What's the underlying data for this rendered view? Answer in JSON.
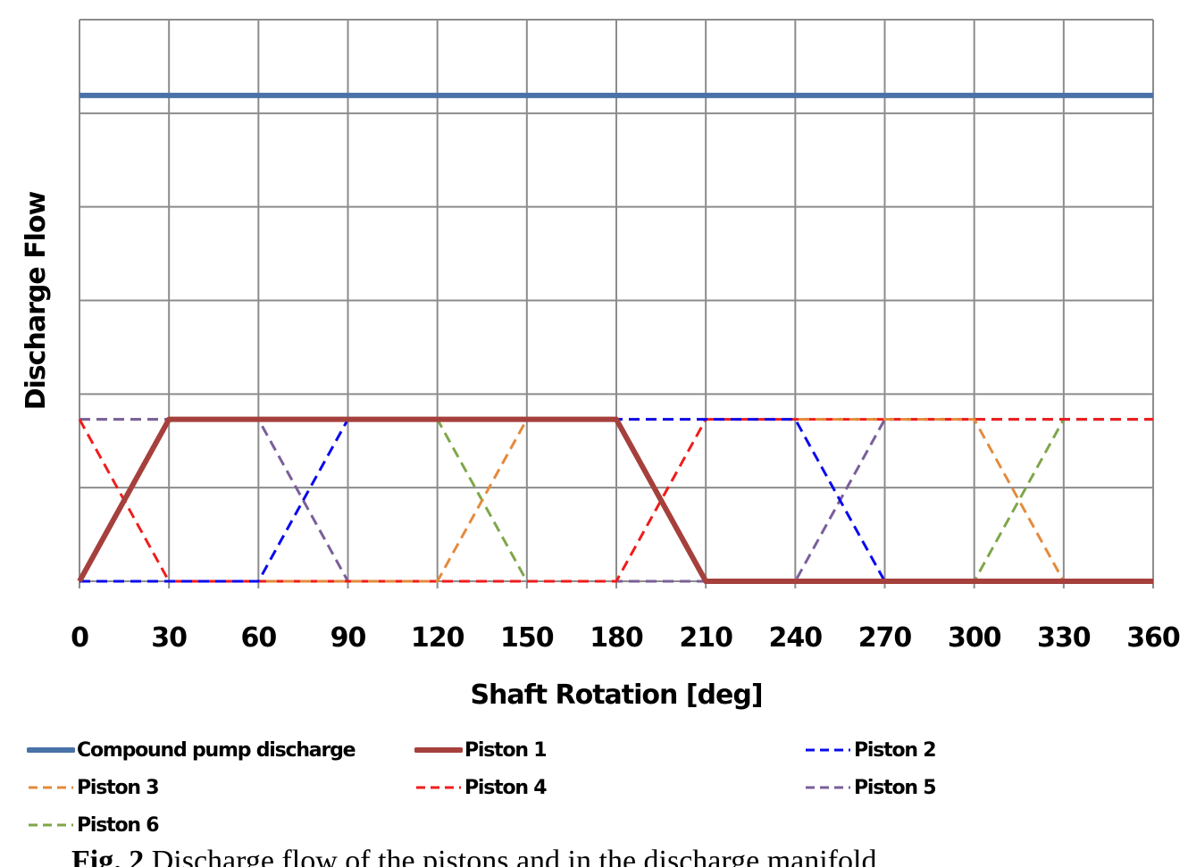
{
  "chart_data": {
    "type": "line",
    "title": "",
    "xlabel": "Shaft Rotation [deg]",
    "ylabel": "Discharge Flow",
    "xlim": [
      0,
      360
    ],
    "ylim": [
      0,
      6
    ],
    "grid": true,
    "y_tick_labels_shown": false,
    "x_ticks": [
      0,
      30,
      60,
      90,
      120,
      150,
      180,
      210,
      240,
      270,
      300,
      330,
      360
    ],
    "legend_position": "bottom",
    "series": [
      {
        "name": "Compound pump discharge",
        "color": "#4A72A8",
        "style": "solid",
        "width": 6,
        "x": [
          0,
          360
        ],
        "y": [
          5.19,
          5.19
        ]
      },
      {
        "name": "Piston 1",
        "color": "#A5403C",
        "style": "solid",
        "width": 6,
        "x": [
          0,
          30,
          180,
          210,
          360
        ],
        "y": [
          0,
          1.73,
          1.73,
          0,
          0
        ]
      },
      {
        "name": "Piston 2",
        "color": "#0A0AEE",
        "style": "dashed",
        "width": 3,
        "x": [
          0,
          60,
          90,
          240,
          270,
          360
        ],
        "y": [
          0,
          0,
          1.73,
          1.73,
          0,
          0
        ]
      },
      {
        "name": "Piston 3",
        "color": "#E48A3C",
        "style": "dashed",
        "width": 3,
        "x": [
          0,
          120,
          150,
          300,
          330,
          360
        ],
        "y": [
          0,
          0,
          1.73,
          1.73,
          0,
          0
        ]
      },
      {
        "name": "Piston 4",
        "color": "#F01C1C",
        "style": "dashed",
        "width": 3,
        "x": [
          0,
          30,
          180,
          210,
          360
        ],
        "y": [
          1.73,
          0,
          0,
          1.73,
          1.73
        ]
      },
      {
        "name": "Piston 5",
        "color": "#7A5F9A",
        "style": "dashed",
        "width": 3,
        "x": [
          0,
          60,
          90,
          240,
          270,
          360
        ],
        "y": [
          1.73,
          1.73,
          0,
          0,
          1.73,
          1.73
        ]
      },
      {
        "name": "Piston 6",
        "color": "#7FA64A",
        "style": "dashed",
        "width": 3,
        "x": [
          0,
          120,
          150,
          300,
          330,
          360
        ],
        "y": [
          1.73,
          1.73,
          0,
          0,
          1.73,
          1.73
        ]
      }
    ]
  },
  "legend": {
    "items": [
      {
        "label": "Compound pump discharge",
        "color": "#4A72A8",
        "style": "solid"
      },
      {
        "label": "Piston 1",
        "color": "#A5403C",
        "style": "solid"
      },
      {
        "label": "Piston 2",
        "color": "#0A0AEE",
        "style": "dashed"
      },
      {
        "label": "Piston 3",
        "color": "#E48A3C",
        "style": "dashed"
      },
      {
        "label": "Piston 4",
        "color": "#F01C1C",
        "style": "dashed"
      },
      {
        "label": "Piston 5",
        "color": "#7A5F9A",
        "style": "dashed"
      },
      {
        "label": "Piston 6",
        "color": "#7FA64A",
        "style": "dashed"
      }
    ]
  },
  "caption": {
    "label": "Fig. 2",
    "text": "Discharge flow of the pistons and in the discharge manifold"
  }
}
